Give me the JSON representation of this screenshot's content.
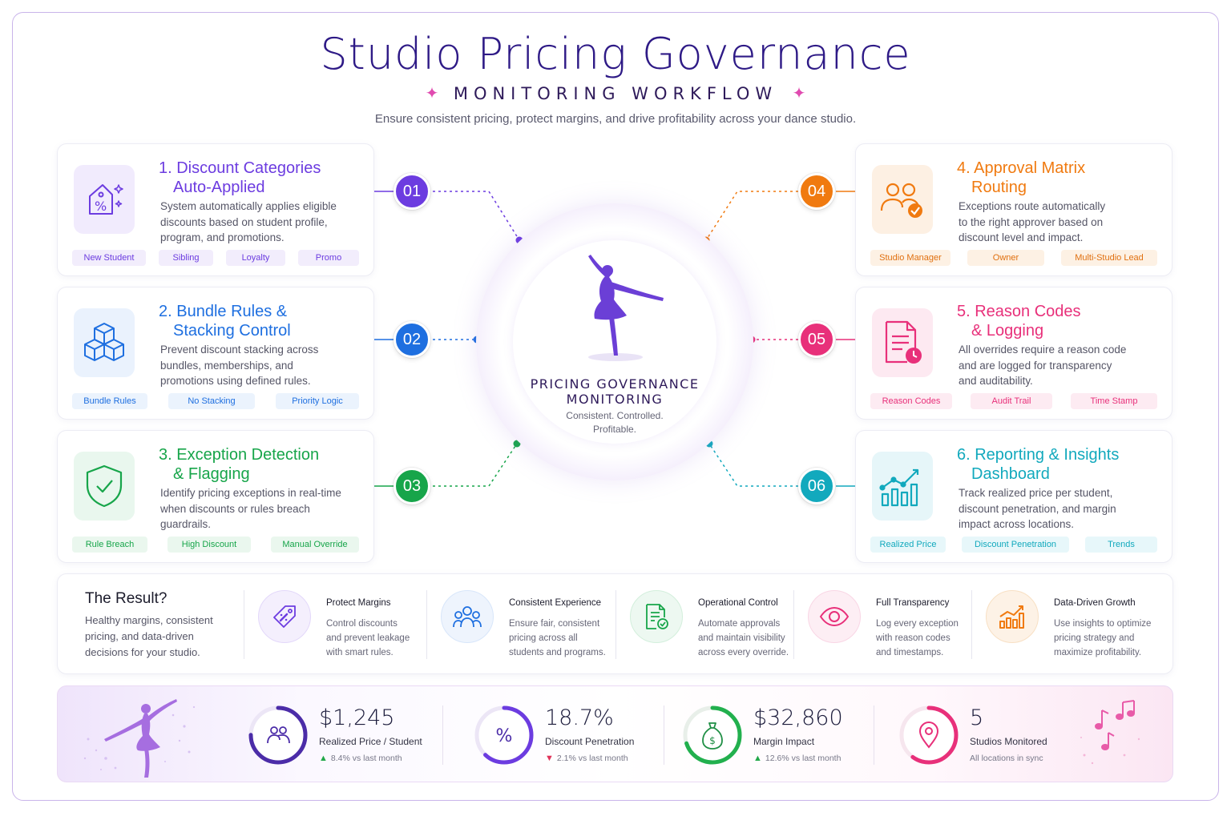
{
  "header": {
    "title": "Studio Pricing Governance",
    "subtitle": "MONITORING WORKFLOW",
    "tagline": "Ensure consistent pricing, protect margins, and drive profitability across your dance studio."
  },
  "colors": {
    "purple": "#6c3ce0",
    "blue": "#1e6fe0",
    "green": "#17a54a",
    "orange": "#f07a10",
    "pink": "#e8307a",
    "teal": "#12a9bd"
  },
  "center": {
    "icon": "ballerina-icon",
    "title_line1": "PRICING GOVERNANCE",
    "title_line2": "MONITORING",
    "sub_line1": "Consistent. Controlled.",
    "sub_line2": "Profitable."
  },
  "steps": [
    {
      "number": "01",
      "title_line1": "1. Discount Categories",
      "title_line2": "Auto-Applied",
      "icon": "discount-tag-icon",
      "desc_lines": [
        "System automatically applies eligible",
        "discounts based on student profile,",
        "program, and promotions."
      ],
      "tags": [
        "New Student",
        "Sibling",
        "Loyalty",
        "Promo"
      ]
    },
    {
      "number": "02",
      "title_line1": "2. Bundle Rules &",
      "title_line2": "Stacking Control",
      "icon": "stacked-cubes-icon",
      "desc_lines": [
        "Prevent discount stacking across",
        "bundles, memberships, and",
        "promotions using defined rules."
      ],
      "tags": [
        "Bundle Rules",
        "No Stacking",
        "Priority Logic"
      ]
    },
    {
      "number": "03",
      "title_line1": "3. Exception Detection",
      "title_line2": "& Flagging",
      "icon": "shield-check-icon",
      "desc_lines": [
        "Identify pricing exceptions in real-time",
        "when discounts or rules breach",
        "guardrails."
      ],
      "tags": [
        "Rule Breach",
        "High Discount",
        "Manual Override"
      ]
    },
    {
      "number": "04",
      "title_line1": "4. Approval Matrix",
      "title_line2": "Routing",
      "icon": "users-check-icon",
      "desc_lines": [
        "Exceptions route automatically",
        "to the right approver based on",
        "discount level and impact."
      ],
      "tags": [
        "Studio Manager",
        "Owner",
        "Multi-Studio Lead"
      ]
    },
    {
      "number": "05",
      "title_line1": "5. Reason Codes",
      "title_line2": "& Logging",
      "icon": "document-clock-icon",
      "desc_lines": [
        "All overrides require a reason code",
        "and are logged for transparency",
        "and auditability."
      ],
      "tags": [
        "Reason Codes",
        "Audit Trail",
        "Time Stamp"
      ]
    },
    {
      "number": "06",
      "title_line1": "6. Reporting & Insights",
      "title_line2": "Dashboard",
      "icon": "trend-chart-icon",
      "desc_lines": [
        "Track realized price per student,",
        "discount penetration, and margin",
        "impact across locations."
      ],
      "tags": [
        "Realized Price",
        "Discount Penetration",
        "Trends"
      ]
    }
  ],
  "result": {
    "heading": "The Result?",
    "text_lines": [
      "Healthy margins, consistent",
      "pricing, and data-driven",
      "decisions for your studio."
    ],
    "benefits": [
      {
        "title": "Protect Margins",
        "icon": "tag-percent-icon",
        "desc_lines": [
          "Control discounts",
          "and prevent leakage",
          "with smart rules."
        ]
      },
      {
        "title": "Consistent Experience",
        "icon": "people-group-icon",
        "desc_lines": [
          "Ensure fair, consistent",
          "pricing across all",
          "students and programs."
        ]
      },
      {
        "title": "Operational Control",
        "icon": "document-check-icon",
        "desc_lines": [
          "Automate approvals",
          "and maintain visibility",
          "across every override."
        ]
      },
      {
        "title": "Full Transparency",
        "icon": "eye-icon",
        "desc_lines": [
          "Log every exception",
          "with reason codes",
          "and timestamps."
        ]
      },
      {
        "title": "Data-Driven Growth",
        "icon": "bar-chart-up-icon",
        "desc_lines": [
          "Use insights to optimize",
          "pricing strategy and",
          "maximize profitability."
        ]
      }
    ]
  },
  "metrics": [
    {
      "value": "$1,245",
      "label": "Realized Price / Student",
      "delta": "8.4% vs last month",
      "trend": "up",
      "icon": "users-icon",
      "ring_fraction": 0.75
    },
    {
      "value": "18.7%",
      "label": "Discount Penetration",
      "delta": "2.1% vs last month",
      "trend": "down",
      "icon": "percent-icon",
      "ring_fraction": 0.62
    },
    {
      "value": "$32,860",
      "label": "Margin Impact",
      "delta": "12.6% vs last month",
      "trend": "up",
      "icon": "money-bag-icon",
      "ring_fraction": 0.7
    },
    {
      "value": "5",
      "label": "Studios Monitored",
      "delta": "All locations in sync",
      "trend": "none",
      "icon": "location-pin-icon",
      "ring_fraction": 0.6
    }
  ]
}
